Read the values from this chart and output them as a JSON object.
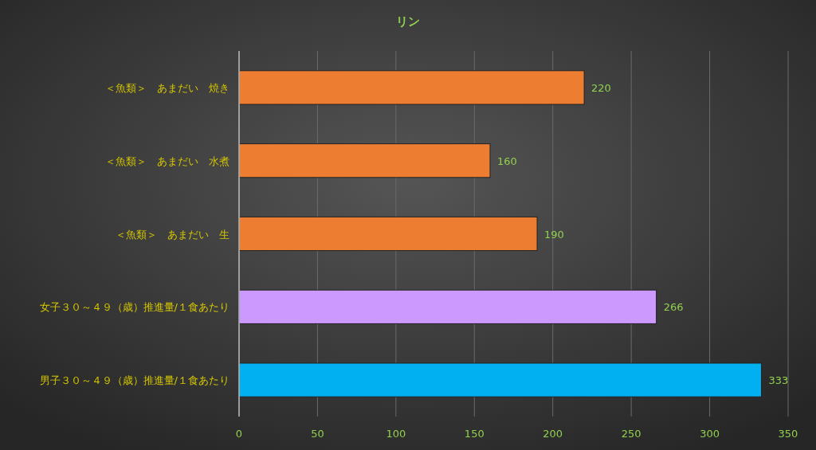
{
  "chart_data": {
    "type": "bar",
    "orientation": "horizontal",
    "title": "リン",
    "categories": [
      "＜魚類＞　あまだい　焼き",
      "＜魚類＞　あまだい　水煮",
      "＜魚類＞　あまだい　生",
      "女子３０～４９（歳）推進量/１食あたり",
      "男子３０～４９（歳）推進量/１食あたり"
    ],
    "values": [
      220,
      160,
      190,
      266,
      333
    ],
    "colors": [
      "#ed7d31",
      "#ed7d31",
      "#ed7d31",
      "#cc99ff",
      "#00b0f0"
    ],
    "data_labels": true,
    "xlim": [
      0,
      350
    ],
    "xticks": [
      0,
      50,
      100,
      150,
      200,
      250,
      300,
      350
    ],
    "grid": "x"
  }
}
